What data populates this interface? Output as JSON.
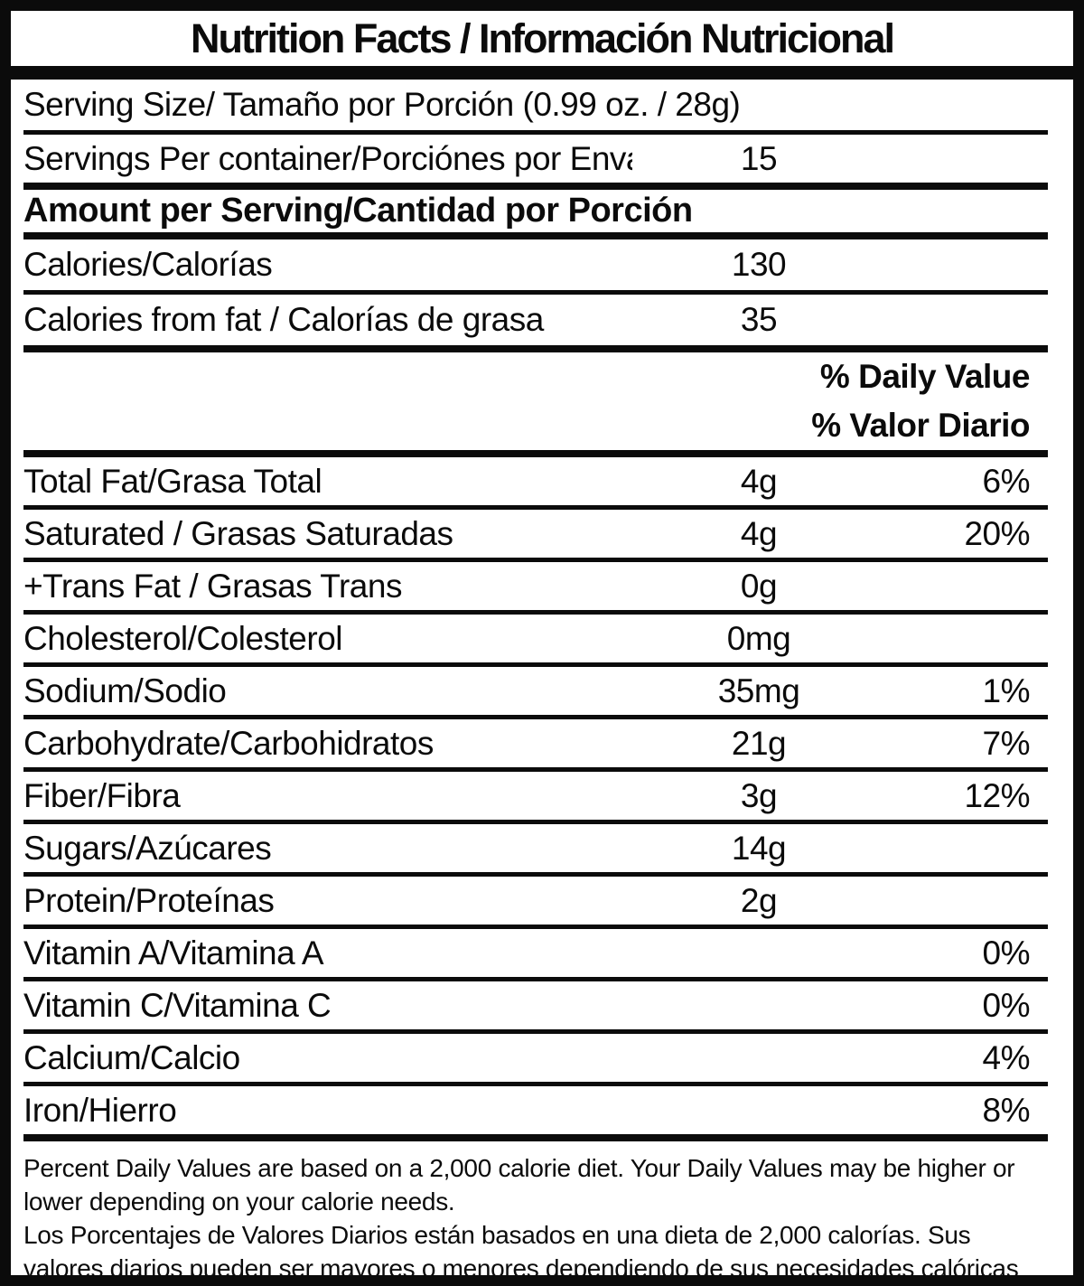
{
  "colors": {
    "ink": "#0b0b0b",
    "background": "#ffffff"
  },
  "title": "Nutrition Facts / Información Nutricional",
  "serving_size": {
    "label": "Serving Size/ Tamaño por Porción  (0.99 oz. / 28g)"
  },
  "servings_per_container": {
    "label": "Servings Per container/Porciónes por Envase:",
    "value": "15"
  },
  "amount_per_serving_header": "Amount per Serving/Cantidad por Porción",
  "calories": {
    "label": "Calories/Calorías",
    "value": "130"
  },
  "calories_from_fat": {
    "label": "Calories from fat / Calorías de grasa",
    "value": "35"
  },
  "daily_value_header": {
    "en": "% Daily Value",
    "es": "% Valor Diario"
  },
  "nutrients": [
    {
      "label": "Total Fat/Grasa Total",
      "amount": "4g",
      "daily_value": "6%"
    },
    {
      "label": "Saturated / Grasas Saturadas",
      "amount": "4g",
      "daily_value": "20%"
    },
    {
      "label": "+Trans Fat / Grasas Trans",
      "amount": "0g",
      "daily_value": ""
    },
    {
      "label": "Cholesterol/Colesterol",
      "amount": "0mg",
      "daily_value": ""
    },
    {
      "label": "Sodium/Sodio",
      "amount": "35mg",
      "daily_value": "1%"
    },
    {
      "label": "Carbohydrate/Carbohidratos",
      "amount": "21g",
      "daily_value": "7%"
    },
    {
      "label": "Fiber/Fibra",
      "amount": "3g",
      "daily_value": "12%"
    },
    {
      "label": "Sugars/Azúcares",
      "amount": "14g",
      "daily_value": ""
    },
    {
      "label": "Protein/Proteínas",
      "amount": "2g",
      "daily_value": ""
    },
    {
      "label": "Vitamin A/Vitamina A",
      "amount": "",
      "daily_value": "0%"
    },
    {
      "label": "Vitamin C/Vitamina C",
      "amount": "",
      "daily_value": "0%"
    },
    {
      "label": "Calcium/Calcio",
      "amount": "",
      "daily_value": "4%"
    },
    {
      "label": "Iron/Hierro",
      "amount": "",
      "daily_value": "8%"
    }
  ],
  "footnotes": {
    "en": "Percent Daily Values are based on a 2,000 calorie diet. Your Daily Values may be higher or lower depending on your calorie needs.",
    "es": "Los Porcentajes de Valores Diarios están basados en una dieta de 2,000 calorías. Sus valores diarios pueden ser mayores o menores dependiendo de sus necesidades calóricas"
  }
}
